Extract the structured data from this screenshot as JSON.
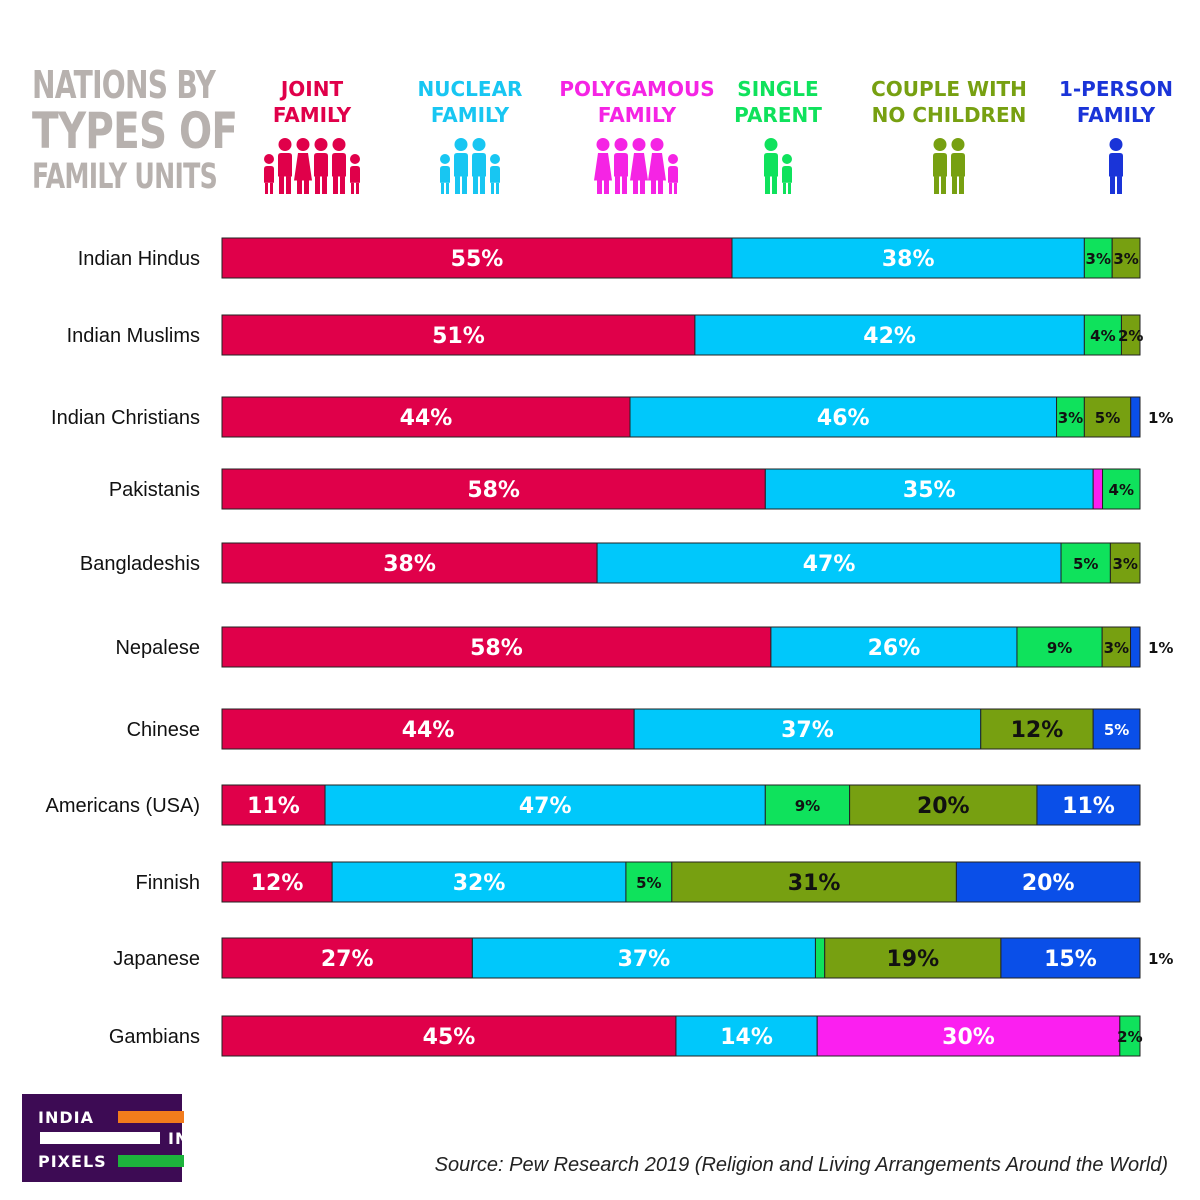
{
  "title": {
    "line1": "NATIONS BY",
    "line2": "TYPES OF",
    "line3": "FAMILY UNITS"
  },
  "legend": [
    {
      "line1": "JOINT",
      "line2": "FAMILY",
      "color": "#e0004a",
      "icon": "joint-family-icon"
    },
    {
      "line1": "NUCLEAR",
      "line2": "FAMILY",
      "color": "#18c6f2",
      "icon": "nuclear-family-icon"
    },
    {
      "line1": "POLYGAMOUS",
      "line2": "FAMILY",
      "color": "#f524e4",
      "icon": "polygamous-family-icon"
    },
    {
      "line1": "SINGLE",
      "line2": "PARENT",
      "color": "#0fe25c",
      "icon": "single-parent-icon"
    },
    {
      "line1": "COUPLE WITH",
      "line2": "NO CHILDREN",
      "color": "#77a011",
      "icon": "couple-no-children-icon"
    },
    {
      "line1": "1-PERSON",
      "line2": "FAMILY",
      "color": "#1a34d8",
      "icon": "one-person-family-icon"
    }
  ],
  "chart_data": {
    "type": "bar",
    "orientation": "horizontal",
    "stacked": true,
    "unit": "%",
    "categories": [
      "Indian Hindus",
      "Indian Muslims",
      "Indian Christians",
      "Pakistanis",
      "Bangladeshis",
      "Nepalese",
      "Chinese",
      "Americans (USA)",
      "Finnish",
      "Japanese",
      "Gambians"
    ],
    "series": [
      {
        "name": "Joint Family",
        "color": "#e0004a",
        "values": [
          55,
          51,
          44,
          58,
          38,
          58,
          44,
          11,
          12,
          27,
          45
        ]
      },
      {
        "name": "Nuclear Family",
        "color": "#00c8fb",
        "values": [
          38,
          42,
          46,
          35,
          47,
          26,
          37,
          47,
          32,
          37,
          14
        ]
      },
      {
        "name": "Polygamous Family",
        "color": "#fb1ff0",
        "values": [
          0,
          0,
          0,
          1,
          0,
          0,
          0,
          0,
          0,
          0,
          30
        ]
      },
      {
        "name": "Single Parent",
        "color": "#0fe25c",
        "values": [
          3,
          4,
          3,
          4,
          5,
          9,
          0,
          9,
          5,
          1,
          2
        ]
      },
      {
        "name": "Couple with No Children",
        "color": "#77a011",
        "values": [
          3,
          2,
          5,
          0,
          3,
          3,
          12,
          20,
          31,
          19,
          0
        ]
      },
      {
        "name": "1-Person Family",
        "color": "#0a4fe8",
        "values": [
          0,
          0,
          1,
          0,
          0,
          1,
          5,
          11,
          20,
          15,
          0
        ]
      }
    ],
    "labels": [
      [
        "55%",
        "38%",
        "",
        "3%",
        "3%",
        ""
      ],
      [
        "51%",
        "42%",
        "",
        "4%",
        "2%",
        ""
      ],
      [
        "44%",
        "46%",
        "",
        "3%",
        "5%",
        "1%"
      ],
      [
        "58%",
        "35%",
        "",
        "4%",
        "",
        ""
      ],
      [
        "38%",
        "47%",
        "",
        "5%",
        "3%",
        ""
      ],
      [
        "58%",
        "26%",
        "",
        "9%",
        "3%",
        "1%"
      ],
      [
        "44%",
        "37%",
        "",
        "",
        "12%",
        "5%"
      ],
      [
        "11%",
        "47%",
        "",
        "9%",
        "20%",
        "11%"
      ],
      [
        "12%",
        "32%",
        "",
        "5%",
        "31%",
        "20%"
      ],
      [
        "27%",
        "37%",
        "",
        "1%",
        "19%",
        "15%"
      ],
      [
        "45%",
        "14%",
        "30%",
        "2%",
        "",
        ""
      ]
    ]
  },
  "logo": {
    "word1": "INDIA",
    "word2": "IN",
    "word3": "PIXELS"
  },
  "source": "Source: Pew Research 2019 (Religion and Living Arrangements Around the World)"
}
